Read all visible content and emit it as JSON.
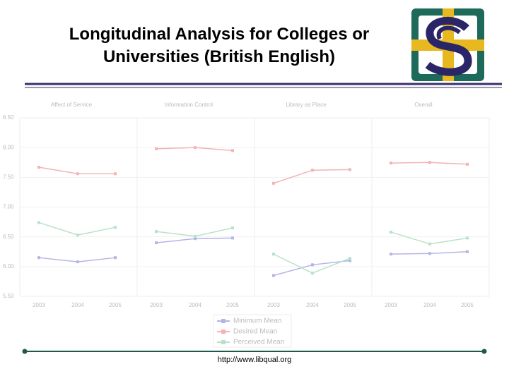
{
  "header": {
    "title": "Longitudinal Analysis for Colleges or Universities (British English)"
  },
  "footer": {
    "url": "http://www.libqual.org"
  },
  "chart_data": {
    "type": "line",
    "ylim": [
      5.5,
      8.5
    ],
    "yticks": [
      {
        "value": 5.5,
        "label": "5.50"
      },
      {
        "value": 6,
        "label": "6.00"
      },
      {
        "value": 6.5,
        "label": "6.50"
      },
      {
        "value": 7,
        "label": "7.00"
      },
      {
        "value": 7.5,
        "label": "7.50"
      },
      {
        "value": 8,
        "label": "8.00"
      },
      {
        "value": 8.5,
        "label": "8.50"
      }
    ],
    "grid": true,
    "series": [
      {
        "name": "Minimum Mean",
        "color": "#b4b4e8"
      },
      {
        "name": "Desired Mean",
        "color": "#f2b4b4"
      },
      {
        "name": "Perceived Mean",
        "color": "#b8e2c8"
      }
    ],
    "panels": [
      {
        "title": "Affect of Service",
        "categories": [
          "2003",
          "2004",
          "2005"
        ],
        "series": [
          {
            "values": [
              6.15,
              6.08,
              6.15
            ]
          },
          {
            "values": [
              7.67,
              7.56,
              7.56
            ]
          },
          {
            "values": [
              6.74,
              6.53,
              6.66
            ]
          }
        ]
      },
      {
        "title": "Information Control",
        "categories": [
          "2003",
          "2004",
          "2005"
        ],
        "series": [
          {
            "values": [
              6.4,
              6.47,
              6.48
            ]
          },
          {
            "values": [
              7.98,
              8.0,
              7.95
            ]
          },
          {
            "values": [
              6.59,
              6.51,
              6.65
            ]
          }
        ]
      },
      {
        "title": "Library as Place",
        "categories": [
          "2003",
          "2004",
          "2005"
        ],
        "series": [
          {
            "values": [
              5.85,
              6.03,
              6.1
            ]
          },
          {
            "values": [
              7.4,
              7.62,
              7.63
            ]
          },
          {
            "values": [
              6.21,
              5.89,
              6.14
            ]
          }
        ]
      },
      {
        "title": "Overall",
        "categories": [
          "2003",
          "2004",
          "2005"
        ],
        "series": [
          {
            "values": [
              6.21,
              6.22,
              6.25
            ]
          },
          {
            "values": [
              7.74,
              7.75,
              7.72
            ]
          },
          {
            "values": [
              6.58,
              6.38,
              6.48
            ]
          }
        ]
      }
    ]
  }
}
